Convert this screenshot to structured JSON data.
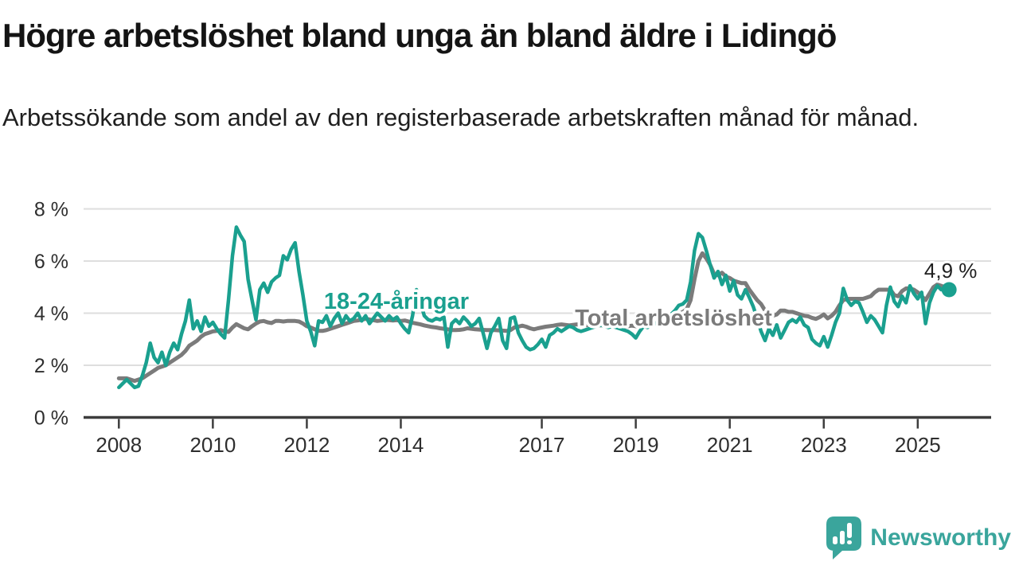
{
  "header": {
    "title": "Högre arbetslöshet bland unga än bland äldre i Lidingö",
    "subtitle": "Arbetssökande som andel av den registerbaserade arbetskraften månad för månad."
  },
  "branding": {
    "logo_text": "Newsworthy",
    "logo_color": "#3aa59c",
    "logo_icon": "speech-bubble-bar-chart"
  },
  "chart_data": {
    "type": "line",
    "title": "Högre arbetslöshet bland unga än bland äldre i Lidingö",
    "subtitle": "Arbetssökande som andel av den registerbaserade arbetskraften månad för månad.",
    "frequency": "monthly",
    "start": "2008-01",
    "end": "2025-09",
    "ylim": [
      0,
      8
    ],
    "grid": "horizontal",
    "y_ticks": [
      {
        "value": 0,
        "label": "0 %"
      },
      {
        "value": 2,
        "label": "2 %"
      },
      {
        "value": 4,
        "label": "4 %"
      },
      {
        "value": 6,
        "label": "6 %"
      },
      {
        "value": 8,
        "label": "8 %"
      }
    ],
    "x_ticks": [
      {
        "year": 2008,
        "label": "2008"
      },
      {
        "year": 2010,
        "label": "2010"
      },
      {
        "year": 2012,
        "label": "2012"
      },
      {
        "year": 2014,
        "label": "2014"
      },
      {
        "year": 2017,
        "label": "2017"
      },
      {
        "year": 2019,
        "label": "2019"
      },
      {
        "year": 2021,
        "label": "2021"
      },
      {
        "year": 2023,
        "label": "2023"
      },
      {
        "year": 2025,
        "label": "2025"
      }
    ],
    "annotation": {
      "label": "4,9 %",
      "value": 4.9,
      "series": "18-24-åringar"
    },
    "colors": {
      "youth": "#1aa08f",
      "total": "#7b7b7b",
      "grid": "#dedede",
      "axis": "#3d3d3d",
      "annotation_text": "#1f1f1f"
    },
    "series": [
      {
        "name": "Total arbetslöshet",
        "color": "#7b7b7b",
        "values": [
          1.5,
          1.5,
          1.5,
          1.45,
          1.4,
          1.45,
          1.5,
          1.6,
          1.7,
          1.8,
          1.9,
          1.95,
          2.0,
          2.1,
          2.2,
          2.3,
          2.4,
          2.55,
          2.75,
          2.85,
          2.95,
          3.1,
          3.2,
          3.25,
          3.3,
          3.32,
          3.35,
          3.3,
          3.28,
          3.45,
          3.58,
          3.5,
          3.42,
          3.38,
          3.5,
          3.6,
          3.68,
          3.7,
          3.65,
          3.62,
          3.7,
          3.7,
          3.68,
          3.7,
          3.7,
          3.7,
          3.68,
          3.6,
          3.5,
          3.45,
          3.38,
          3.32,
          3.32,
          3.35,
          3.4,
          3.45,
          3.5,
          3.55,
          3.6,
          3.65,
          3.7,
          3.72,
          3.75,
          3.78,
          3.76,
          3.73,
          3.7,
          3.72,
          3.74,
          3.73,
          3.72,
          3.73,
          3.7,
          3.72,
          3.68,
          3.63,
          3.6,
          3.57,
          3.53,
          3.5,
          3.47,
          3.45,
          3.42,
          3.4,
          3.38,
          3.35,
          3.35,
          3.36,
          3.38,
          3.42,
          3.4,
          3.38,
          3.37,
          3.36,
          3.35,
          3.35,
          3.35,
          3.34,
          3.33,
          3.32,
          3.35,
          3.45,
          3.48,
          3.52,
          3.48,
          3.42,
          3.38,
          3.42,
          3.45,
          3.48,
          3.5,
          3.52,
          3.55,
          3.57,
          3.55,
          3.53,
          3.55,
          3.57,
          3.55,
          3.53,
          3.55,
          3.57,
          3.55,
          3.53,
          3.55,
          3.57,
          3.55,
          3.53,
          3.5,
          3.48,
          3.5,
          3.52,
          3.5,
          3.52,
          3.55,
          3.57,
          3.6,
          3.62,
          3.65,
          3.68,
          3.72,
          3.78,
          3.85,
          3.95,
          4.05,
          4.15,
          4.5,
          5.3,
          6.0,
          6.3,
          6.1,
          5.85,
          5.5,
          5.45,
          5.55,
          5.4,
          5.35,
          5.25,
          5.2,
          5.15,
          5.15,
          4.9,
          4.7,
          4.5,
          4.35,
          4.1,
          4.05,
          3.9,
          3.95,
          4.1,
          4.1,
          4.05,
          4.05,
          4.0,
          3.95,
          3.9,
          3.88,
          3.82,
          3.78,
          3.85,
          3.95,
          3.8,
          3.9,
          4.05,
          4.3,
          4.5,
          4.55,
          4.55,
          4.55,
          4.55,
          4.55,
          4.6,
          4.65,
          4.8,
          4.9,
          4.9,
          4.9,
          4.9,
          4.7,
          4.65,
          4.85,
          4.95,
          4.95,
          4.9,
          4.8,
          4.65,
          4.5,
          4.75,
          5.0,
          5.1,
          5.05,
          5.0,
          5.0
        ]
      },
      {
        "name": "18-24-åringar",
        "color": "#1aa08f",
        "values": [
          1.15,
          1.3,
          1.45,
          1.3,
          1.15,
          1.2,
          1.6,
          2.1,
          2.85,
          2.3,
          2.1,
          2.5,
          2.0,
          2.5,
          2.85,
          2.6,
          3.2,
          3.7,
          4.5,
          3.4,
          3.7,
          3.3,
          3.85,
          3.5,
          3.65,
          3.4,
          3.2,
          3.05,
          4.5,
          6.2,
          7.3,
          7.0,
          6.75,
          5.3,
          4.5,
          3.75,
          4.9,
          5.15,
          4.8,
          5.2,
          5.35,
          5.45,
          6.2,
          6.05,
          6.45,
          6.7,
          5.6,
          4.7,
          3.7,
          3.3,
          2.75,
          3.7,
          3.65,
          3.9,
          3.5,
          3.8,
          4.0,
          3.6,
          3.9,
          3.7,
          3.8,
          4.0,
          3.7,
          3.9,
          3.6,
          3.8,
          4.0,
          3.85,
          3.7,
          3.9,
          3.75,
          3.85,
          3.6,
          3.4,
          3.25,
          3.9,
          4.9,
          4.4,
          3.9,
          3.75,
          3.7,
          3.8,
          3.75,
          3.85,
          2.7,
          3.6,
          3.75,
          3.6,
          3.85,
          3.7,
          3.5,
          3.6,
          3.8,
          3.25,
          2.65,
          3.25,
          3.5,
          3.8,
          2.95,
          2.65,
          3.8,
          3.85,
          3.25,
          2.95,
          2.7,
          2.6,
          2.65,
          2.8,
          3.0,
          2.7,
          3.15,
          3.25,
          3.4,
          3.3,
          3.4,
          3.5,
          3.45,
          3.35,
          3.3,
          3.35,
          3.4,
          3.45,
          3.5,
          3.55,
          3.5,
          3.45,
          3.5,
          3.45,
          3.4,
          3.35,
          3.3,
          3.2,
          3.05,
          3.3,
          3.5,
          3.45,
          3.55,
          3.6,
          3.65,
          3.7,
          3.8,
          3.95,
          4.1,
          4.3,
          4.35,
          4.5,
          5.2,
          6.4,
          7.05,
          6.9,
          6.4,
          5.85,
          5.35,
          5.6,
          5.1,
          5.45,
          4.85,
          5.25,
          4.7,
          4.55,
          4.9,
          4.6,
          4.25,
          3.8,
          3.3,
          2.95,
          3.4,
          3.15,
          3.55,
          3.05,
          3.35,
          3.65,
          3.75,
          3.65,
          3.85,
          3.55,
          3.45,
          3.0,
          2.85,
          2.75,
          3.1,
          2.7,
          3.15,
          3.65,
          4.0,
          4.95,
          4.5,
          4.3,
          4.45,
          4.4,
          4.05,
          3.65,
          3.9,
          3.75,
          3.5,
          3.25,
          4.3,
          5.0,
          4.45,
          4.25,
          4.65,
          4.4,
          5.05,
          4.75,
          4.55,
          4.8,
          3.6,
          4.4,
          4.8,
          5.05,
          4.9,
          4.95,
          4.9
        ]
      }
    ]
  }
}
